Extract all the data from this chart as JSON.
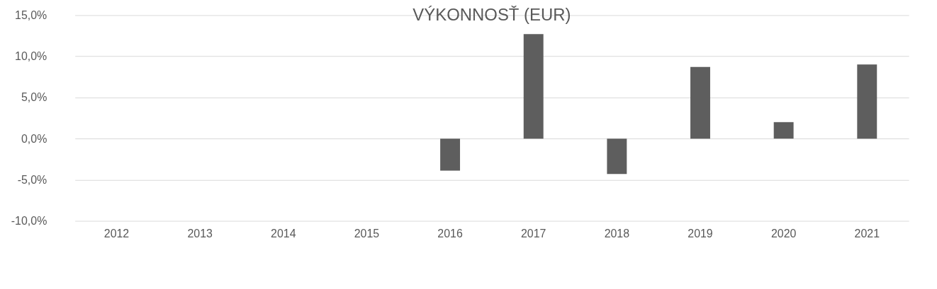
{
  "chart_data": {
    "type": "bar",
    "title": "VÝKONNOSŤ (EUR)",
    "categories": [
      "2012",
      "2013",
      "2014",
      "2015",
      "2016",
      "2017",
      "2018",
      "2019",
      "2020",
      "2021"
    ],
    "values": [
      null,
      null,
      null,
      null,
      -3.9,
      12.7,
      -4.3,
      8.7,
      2.0,
      9.0
    ],
    "color": "#5e5e5e",
    "ylim": [
      -10,
      15
    ],
    "yticks": [
      {
        "value": -10,
        "label": "-10,0%"
      },
      {
        "value": -5,
        "label": "-5,0%"
      },
      {
        "value": 0,
        "label": "0,0%"
      },
      {
        "value": 5,
        "label": "5,0%"
      },
      {
        "value": 10,
        "label": "10,0%"
      },
      {
        "value": 15,
        "label": "15,0%"
      }
    ],
    "grid": "y"
  }
}
